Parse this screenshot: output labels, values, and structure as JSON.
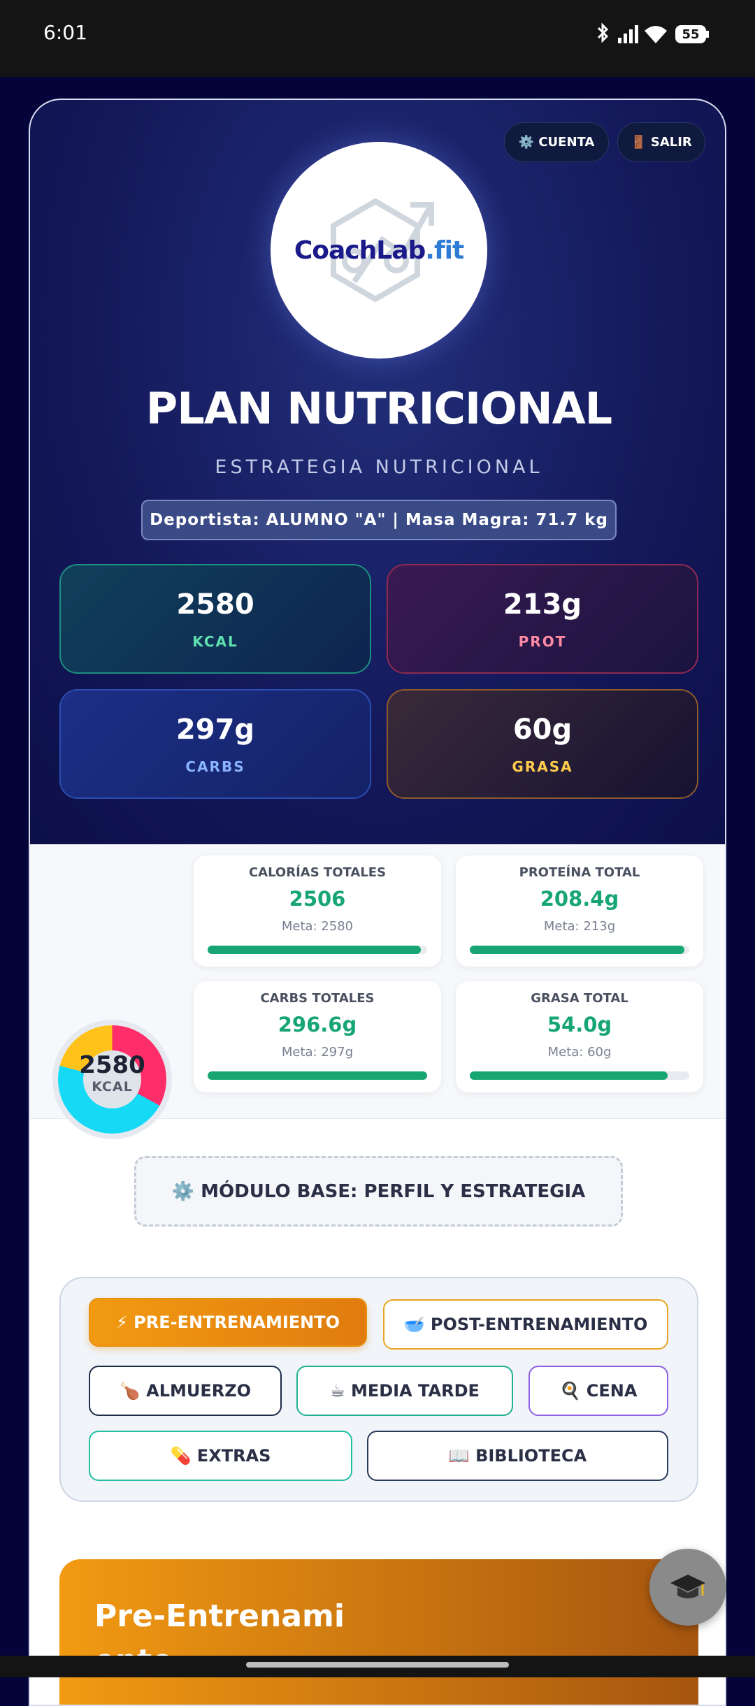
{
  "status_bar": {
    "time": "6:01",
    "battery": "55"
  },
  "header": {
    "buttons": [
      "⚙️ CUENTA",
      "🚪 SALIR"
    ],
    "logo": {
      "brand": "CoachLab",
      "suffix": ".fit"
    },
    "title": "PLAN NUTRICIONAL",
    "subtitle": "ESTRATEGIA NUTRICIONAL",
    "athlete": "Deportista: ALUMNO \"A\" | Masa Magra: 71.7 kg",
    "targets": [
      {
        "value": "2580",
        "label": "KCAL"
      },
      {
        "value": "213g",
        "label": "PROT"
      },
      {
        "value": "297g",
        "label": "CARBS"
      },
      {
        "value": "60g",
        "label": "GRASA"
      }
    ]
  },
  "summary": {
    "donut": {
      "value": "2580",
      "label": "KCAL"
    },
    "cards": [
      {
        "title": "CALORÍAS TOTALES",
        "value": "2506",
        "goal": "Meta: 2580"
      },
      {
        "title": "PROTEÍNA TOTAL",
        "value": "208.4g",
        "goal": "Meta: 213g"
      },
      {
        "title": "CARBS TOTALES",
        "value": "296.6g",
        "goal": "Meta: 297g"
      },
      {
        "title": "GRASA TOTAL",
        "value": "54.0g",
        "goal": "Meta: 60g"
      }
    ]
  },
  "module": "⚙️ MÓDULO BASE: PERFIL Y ESTRATEGIA",
  "nav": [
    "⚡ PRE-ENTRENAMIENTO",
    "🥣 POST-ENTRENAMIENTO",
    "🍗 ALMUERZO",
    "☕ MEDIA TARDE",
    "🍳 CENA",
    "💊 EXTRAS",
    "📖 BIBLIOTECA"
  ],
  "section": {
    "title": "Pre-Entrenamiento"
  }
}
